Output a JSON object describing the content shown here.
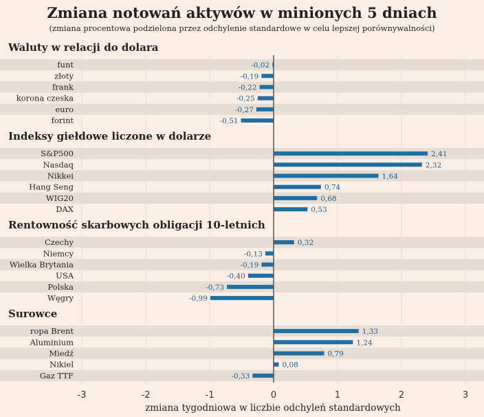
{
  "chart_data": {
    "type": "bar",
    "orientation": "horizontal",
    "title": "Zmiana notowań aktywów w minionych 5 dniach",
    "subtitle": "(zmiana procentowa podzielona przez odchylenie standardowe w celu lepszej porównywalności)",
    "xlabel": "zmiana tygodniowa w liczbie odchyleń standardowych",
    "xlim": [
      -3,
      3
    ],
    "xticks": [
      "-3",
      "-2",
      "-1",
      "0",
      "1",
      "2",
      "3"
    ],
    "grid": true,
    "groups": [
      {
        "name": "Waluty w relacji do dolara",
        "categories": [
          "funt",
          "złoty",
          "frank",
          "korona czeska",
          "euro",
          "forint"
        ],
        "values": [
          -0.02,
          -0.19,
          -0.22,
          -0.25,
          -0.27,
          -0.51
        ],
        "labels": [
          "-0,02",
          "-0,19",
          "-0,22",
          "-0,25",
          "-0,27",
          "-0,51"
        ]
      },
      {
        "name": "Indeksy giełdowe liczone w dolarze",
        "categories": [
          "S&P500",
          "Nasdaq",
          "Nikkei",
          "Hang Seng",
          "WIG20",
          "DAX"
        ],
        "values": [
          2.41,
          2.32,
          1.64,
          0.74,
          0.68,
          0.53
        ],
        "labels": [
          "2,41",
          "2,32",
          "1,64",
          "0,74",
          "0,68",
          "0,53"
        ]
      },
      {
        "name": "Rentowność skarbowych obligacji 10-letnich",
        "categories": [
          "Czechy",
          "Niemcy",
          "Wielka Brytania",
          "USA",
          "Polska",
          "Węgry"
        ],
        "values": [
          0.32,
          -0.13,
          -0.19,
          -0.4,
          -0.73,
          -0.99
        ],
        "labels": [
          "0,32",
          "-0,13",
          "-0,19",
          "-0,40",
          "-0,73",
          "-0,99"
        ]
      },
      {
        "name": "Surowce",
        "categories": [
          "ropa Brent",
          "Aluminium",
          "Miedź",
          "Nikiel",
          "Gaz TTF"
        ],
        "values": [
          1.33,
          1.24,
          0.79,
          0.08,
          -0.33
        ],
        "labels": [
          "1,33",
          "1,24",
          "0,79",
          "0,08",
          "-0,33"
        ]
      }
    ],
    "colors": {
      "bar": "#1f6fa3",
      "background": "#fbeee4",
      "band": "#e6ddd5",
      "zero_line": "#555555",
      "grid": "#dddddd",
      "value_text": "#1f5a8a",
      "tick_text": "#333333"
    }
  }
}
